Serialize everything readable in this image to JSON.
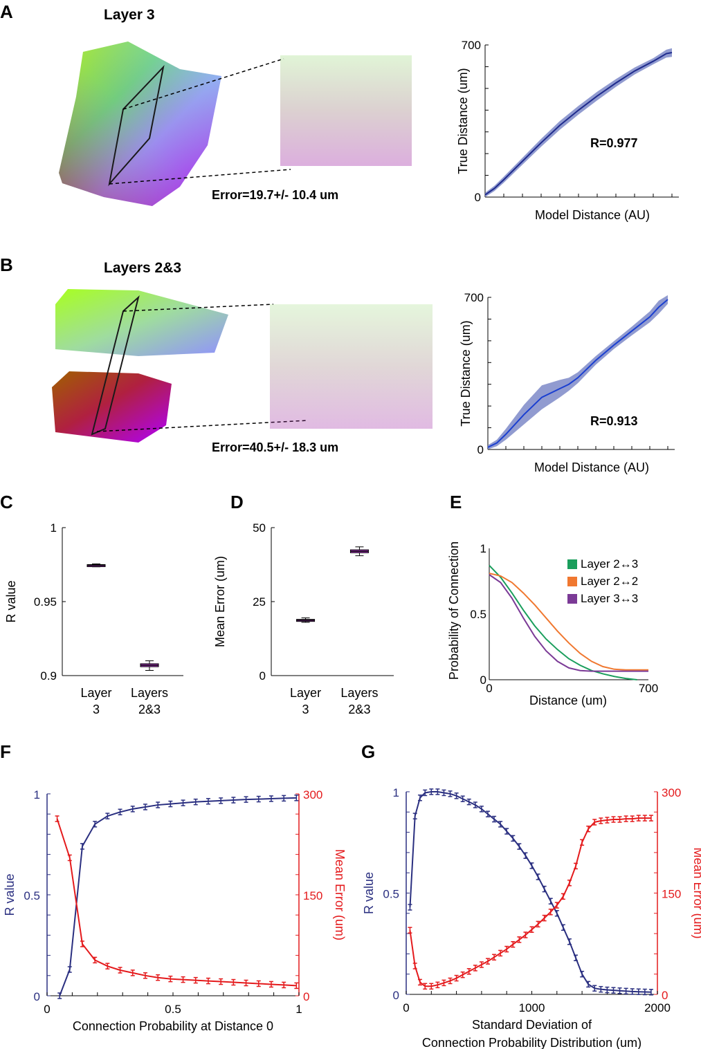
{
  "panels": {
    "A": {
      "label": "A",
      "title": "Layer 3",
      "error": "Error=19.7+/- 10.4 um",
      "r_text": "R=0.977"
    },
    "B": {
      "label": "B",
      "title": "Layers 2&3",
      "error": "Error=40.5+/- 18.3 um",
      "r_text": "R=0.913"
    },
    "C": {
      "label": "C"
    },
    "D": {
      "label": "D"
    },
    "E": {
      "label": "E"
    },
    "F": {
      "label": "F"
    },
    "G": {
      "label": "G"
    }
  },
  "chart_data": [
    {
      "id": "A-right",
      "type": "line",
      "xlabel": "Model Distance (AU)",
      "ylabel": "True Distance (um)",
      "yticks": [
        "0",
        "700"
      ],
      "ylim": [
        0,
        700
      ],
      "x": [
        0,
        0.05,
        0.1,
        0.2,
        0.3,
        0.4,
        0.5,
        0.6,
        0.7,
        0.8,
        0.9,
        0.97,
        1.0
      ],
      "y": [
        10,
        40,
        80,
        165,
        250,
        330,
        400,
        465,
        525,
        580,
        625,
        660,
        665
      ],
      "band": [
        10,
        12,
        14,
        16,
        18,
        20,
        20,
        20,
        18,
        16,
        14,
        18,
        20
      ],
      "line_color": "#1e2a8c",
      "band_color": "#7e89c8"
    },
    {
      "id": "B-right",
      "type": "line",
      "xlabel": "Model Distance (AU)",
      "ylabel": "True Distance (um)",
      "yticks": [
        "0",
        "700"
      ],
      "ylim": [
        0,
        700
      ],
      "x": [
        0,
        0.05,
        0.1,
        0.2,
        0.3,
        0.4,
        0.45,
        0.5,
        0.6,
        0.7,
        0.8,
        0.9,
        0.95,
        1.0
      ],
      "y": [
        10,
        30,
        70,
        160,
        240,
        280,
        300,
        330,
        410,
        480,
        545,
        610,
        655,
        690
      ],
      "band": [
        10,
        15,
        25,
        45,
        55,
        40,
        30,
        25,
        20,
        18,
        20,
        25,
        30,
        20
      ],
      "line_color": "#1a3fd0",
      "band_color": "#7e89c8"
    },
    {
      "id": "C",
      "type": "box",
      "ylabel": "R value",
      "yticks": [
        "0.9",
        "0.95",
        "1"
      ],
      "ylim": [
        0.9,
        1
      ],
      "categories": [
        [
          "Layer",
          "3"
        ],
        [
          "Layers",
          "2&3"
        ]
      ],
      "boxes": [
        {
          "min": 0.9735,
          "q1": 0.974,
          "median": 0.9745,
          "q3": 0.975,
          "max": 0.9755
        },
        {
          "min": 0.9035,
          "q1": 0.906,
          "median": 0.907,
          "q3": 0.908,
          "max": 0.91
        }
      ],
      "color": "#c043d8"
    },
    {
      "id": "D",
      "type": "box",
      "ylabel": "Mean Error (um)",
      "yticks": [
        "0",
        "25",
        "50"
      ],
      "ylim": [
        0,
        50
      ],
      "categories": [
        [
          "Layer",
          "3"
        ],
        [
          "Layers",
          "2&3"
        ]
      ],
      "boxes": [
        {
          "min": 18,
          "q1": 18.5,
          "median": 18.7,
          "q3": 19,
          "max": 19.5
        },
        {
          "min": 40.5,
          "q1": 41.5,
          "median": 42,
          "q3": 42.5,
          "max": 43.5
        }
      ],
      "color": "#c043d8"
    },
    {
      "id": "E",
      "type": "line",
      "xlabel": "Distance (um)",
      "ylabel": "Probability of Connection",
      "yticks": [
        "0",
        "0.5",
        "1"
      ],
      "xticks": [
        "0",
        "700"
      ],
      "ylim": [
        0,
        1
      ],
      "xlim": [
        0,
        700
      ],
      "series": [
        {
          "name": "Layer 2↔3",
          "color": "#1a9e5c",
          "x": [
            0,
            50,
            100,
            150,
            200,
            250,
            300,
            350,
            400,
            450,
            500,
            550,
            600,
            650
          ],
          "y": [
            0.87,
            0.78,
            0.66,
            0.53,
            0.41,
            0.31,
            0.23,
            0.16,
            0.11,
            0.07,
            0.045,
            0.025,
            0.01,
            0.0
          ]
        },
        {
          "name": "Layer 2↔2",
          "color": "#f07830",
          "x": [
            0,
            50,
            100,
            150,
            200,
            250,
            300,
            350,
            400,
            450,
            500,
            550,
            600,
            650,
            700
          ],
          "y": [
            0.81,
            0.79,
            0.74,
            0.66,
            0.57,
            0.47,
            0.37,
            0.28,
            0.2,
            0.14,
            0.1,
            0.08,
            0.075,
            0.075,
            0.075
          ]
        },
        {
          "name": "Layer 3↔3",
          "color": "#7b3a96",
          "x": [
            0,
            50,
            100,
            150,
            200,
            250,
            300,
            350,
            400,
            450,
            500,
            550,
            600,
            650,
            700
          ],
          "y": [
            0.8,
            0.74,
            0.62,
            0.47,
            0.33,
            0.22,
            0.14,
            0.09,
            0.07,
            0.065,
            0.065,
            0.065,
            0.065,
            0.065,
            0.065
          ]
        }
      ]
    },
    {
      "id": "F",
      "type": "line",
      "xlabel": "Connection Probability at Distance 0",
      "ylabel_left": "R value",
      "ylabel_right": "Mean Error (um)",
      "xticks": [
        "0",
        "0.5",
        "1"
      ],
      "yticks_left": [
        "0",
        "0.5",
        "1"
      ],
      "yticks_right": [
        "0",
        "150",
        "300"
      ],
      "xlim": [
        0,
        1
      ],
      "ylim_left": [
        0,
        1
      ],
      "ylim_right": [
        0,
        300
      ],
      "series": [
        {
          "name": "R value",
          "axis": "left",
          "color": "#2a2f80",
          "x": [
            0.05,
            0.09,
            0.14,
            0.19,
            0.24,
            0.29,
            0.34,
            0.39,
            0.44,
            0.49,
            0.54,
            0.59,
            0.64,
            0.69,
            0.74,
            0.79,
            0.84,
            0.89,
            0.94,
            0.99
          ],
          "y": [
            0,
            0.13,
            0.74,
            0.85,
            0.89,
            0.91,
            0.925,
            0.935,
            0.945,
            0.95,
            0.955,
            0.96,
            0.963,
            0.966,
            0.969,
            0.972,
            0.974,
            0.976,
            0.978,
            0.98
          ]
        },
        {
          "name": "Mean Error",
          "axis": "right",
          "color": "#e41a1c",
          "x": [
            0.04,
            0.09,
            0.14,
            0.19,
            0.24,
            0.29,
            0.34,
            0.39,
            0.44,
            0.49,
            0.54,
            0.59,
            0.64,
            0.69,
            0.74,
            0.79,
            0.84,
            0.89,
            0.94,
            0.99
          ],
          "y": [
            263,
            205,
            77,
            53,
            44,
            38,
            34,
            30,
            27,
            25,
            24,
            23,
            22,
            21,
            20,
            19,
            18,
            17,
            16,
            15
          ]
        }
      ]
    },
    {
      "id": "G",
      "type": "line",
      "xlabel": "Standard Deviation of Connection Probability Distribution (um)",
      "xlabel_lines": [
        "Standard Deviation of",
        "Connection Probability Distribution (um)"
      ],
      "ylabel_left": "R value",
      "ylabel_right": "Mean Error (um)",
      "xticks": [
        "0",
        "1000",
        "2000"
      ],
      "yticks_left": [
        "0",
        "0.5",
        "1"
      ],
      "yticks_right": [
        "0",
        "150",
        "300"
      ],
      "xlim": [
        0,
        2000
      ],
      "ylim_left": [
        0,
        1
      ],
      "ylim_right": [
        0,
        300
      ],
      "series": [
        {
          "name": "R value",
          "axis": "left",
          "color": "#2a2f80",
          "x": [
            30,
            70,
            110,
            150,
            200,
            250,
            300,
            350,
            400,
            450,
            500,
            550,
            600,
            650,
            700,
            750,
            800,
            850,
            900,
            950,
            1000,
            1050,
            1100,
            1150,
            1200,
            1250,
            1300,
            1350,
            1400,
            1450,
            1500,
            1550,
            1600,
            1650,
            1700,
            1750,
            1800,
            1850,
            1900,
            1950
          ],
          "y": [
            0.43,
            0.88,
            0.97,
            0.995,
            1.0,
            1.0,
            0.995,
            0.99,
            0.98,
            0.965,
            0.95,
            0.935,
            0.915,
            0.89,
            0.865,
            0.84,
            0.805,
            0.77,
            0.73,
            0.685,
            0.635,
            0.58,
            0.52,
            0.46,
            0.4,
            0.33,
            0.26,
            0.18,
            0.1,
            0.05,
            0.03,
            0.025,
            0.022,
            0.02,
            0.018,
            0.016,
            0.014,
            0.013,
            0.012,
            0.011
          ]
        },
        {
          "name": "Mean Error",
          "axis": "right",
          "color": "#e41a1c",
          "x": [
            30,
            70,
            110,
            150,
            200,
            250,
            300,
            350,
            400,
            450,
            500,
            550,
            600,
            650,
            700,
            750,
            800,
            850,
            900,
            950,
            1000,
            1050,
            1100,
            1150,
            1200,
            1250,
            1300,
            1350,
            1400,
            1450,
            1500,
            1550,
            1600,
            1650,
            1700,
            1750,
            1800,
            1850,
            1900,
            1950
          ],
          "y": [
            95,
            42,
            18,
            12,
            12,
            14,
            17,
            20,
            24,
            29,
            34,
            39,
            44,
            49,
            55,
            61,
            67,
            74,
            81,
            88,
            96,
            104,
            113,
            122,
            132,
            145,
            165,
            190,
            225,
            245,
            255,
            257,
            258,
            259,
            259,
            260,
            260,
            261,
            261,
            261
          ]
        }
      ]
    }
  ]
}
